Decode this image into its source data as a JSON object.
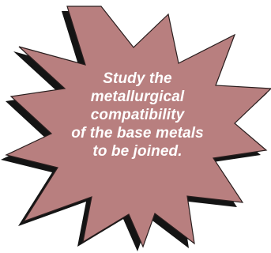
{
  "callout": {
    "lines": [
      "Study the",
      "metallurgical",
      "compatibility",
      "of the base metals",
      "to be joined."
    ]
  },
  "colors": {
    "burst_fill": "#b87f7f",
    "burst_stroke": "#2a1e1e",
    "shadow": "#141414",
    "text": "#ffffff",
    "background": "#ffffff"
  }
}
